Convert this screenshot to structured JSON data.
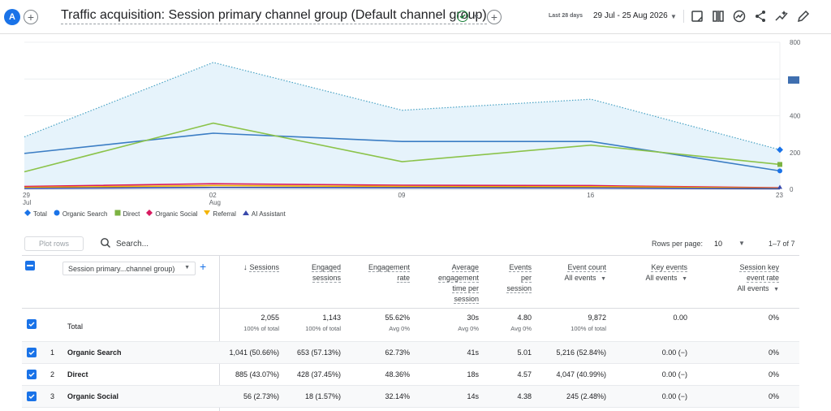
{
  "header": {
    "avatar_letter": "A",
    "title": "Traffic acquisition: Session primary channel group (Default channel group)",
    "date_label": "Last 28 days",
    "date_range": "29 Jul - 25 Aug 2026",
    "icons": [
      "add-icon",
      "check-circle-icon",
      "chevron-down-icon",
      "add-icon",
      "chevron-down-icon",
      "note-icon",
      "compare-icon",
      "insights-icon",
      "share-icon",
      "trend-icon",
      "edit-icon"
    ]
  },
  "chart_data": {
    "type": "line",
    "x": [
      "29 Jul",
      "02 Aug",
      "09",
      "16",
      "23"
    ],
    "x_tick_labels": [
      {
        "top": "29",
        "bottom": "Jul"
      },
      {
        "top": "02",
        "bottom": "Aug"
      },
      {
        "top": "09",
        "bottom": ""
      },
      {
        "top": "16",
        "bottom": ""
      },
      {
        "top": "23",
        "bottom": ""
      }
    ],
    "y_ticks": [
      "800",
      "400",
      "200",
      "0"
    ],
    "ylim": [
      0,
      800
    ],
    "series": [
      {
        "name": "Total",
        "color": "#4aa3c4",
        "values": [
          285,
          690,
          430,
          490,
          215
        ]
      },
      {
        "name": "Organic Search",
        "color": "#3b7dc4",
        "values": [
          195,
          305,
          260,
          260,
          100
        ]
      },
      {
        "name": "Direct",
        "color": "#8bc34a",
        "values": [
          95,
          360,
          150,
          240,
          135
        ]
      },
      {
        "name": "Organic Social",
        "color": "#d81b60",
        "values": [
          15,
          30,
          22,
          20,
          8
        ]
      },
      {
        "name": "Referral",
        "color": "#f4b400",
        "values": [
          10,
          20,
          15,
          14,
          6
        ]
      },
      {
        "name": "AI Assistant",
        "color": "#3949ab",
        "values": [
          5,
          10,
          8,
          7,
          3
        ]
      }
    ]
  },
  "legend": [
    {
      "name": "Total",
      "color": "#1a73e8",
      "shape": "diamond"
    },
    {
      "name": "Organic Search",
      "color": "#1a73e8",
      "shape": "circle"
    },
    {
      "name": "Direct",
      "color": "#7cb342",
      "shape": "square"
    },
    {
      "name": "Organic Social",
      "color": "#d81b60",
      "shape": "diamond"
    },
    {
      "name": "Referral",
      "color": "#f4b400",
      "shape": "triangle-down"
    },
    {
      "name": "AI Assistant",
      "color": "#3949ab",
      "shape": "triangle-up"
    }
  ],
  "toolbar": {
    "plot_rows": "Plot rows",
    "search_placeholder": "Search...",
    "rows_per_page_label": "Rows per page:",
    "rows_per_page": "10",
    "pager": "1–7 of 7"
  },
  "table": {
    "dimension": "Session primary...channel group)",
    "columns": [
      {
        "label": [
          "Sessions"
        ],
        "sub": [],
        "sorted": true
      },
      {
        "label": [
          "Engaged",
          "sessions"
        ],
        "sub": []
      },
      {
        "label": [
          "Engagement",
          "rate"
        ],
        "sub": []
      },
      {
        "label": [
          "Average",
          "engagement",
          "time per",
          "session"
        ],
        "sub": []
      },
      {
        "label": [
          "Events",
          "per",
          "session"
        ],
        "sub": []
      },
      {
        "label": [
          "Event count"
        ],
        "sub": [
          "All events"
        ]
      },
      {
        "label": [
          "Key events"
        ],
        "sub": [
          "All events"
        ]
      },
      {
        "label": [
          "Session key",
          "event rate"
        ],
        "sub": [
          "All events"
        ]
      }
    ],
    "total": {
      "label": "Total",
      "values": [
        "2,055",
        "1,143",
        "55.62%",
        "30s",
        "4.80",
        "9,872",
        "0.00",
        "0%"
      ],
      "subs": [
        "100% of total",
        "100% of total",
        "Avg 0%",
        "Avg 0%",
        "Avg 0%",
        "100% of total",
        "",
        ""
      ]
    },
    "rows": [
      {
        "index": "1",
        "name": "Organic Search",
        "values": [
          "1,041 (50.66%)",
          "653 (57.13%)",
          "62.73%",
          "41s",
          "5.01",
          "5,216 (52.84%)",
          "0.00 (−)",
          "0%"
        ]
      },
      {
        "index": "2",
        "name": "Direct",
        "values": [
          "885 (43.07%)",
          "428 (37.45%)",
          "48.36%",
          "18s",
          "4.57",
          "4,047 (40.99%)",
          "0.00 (−)",
          "0%"
        ]
      },
      {
        "index": "3",
        "name": "Organic Social",
        "values": [
          "56 (2.73%)",
          "18 (1.57%)",
          "32.14%",
          "14s",
          "4.38",
          "245 (2.48%)",
          "0.00 (−)",
          "0%"
        ]
      }
    ]
  }
}
